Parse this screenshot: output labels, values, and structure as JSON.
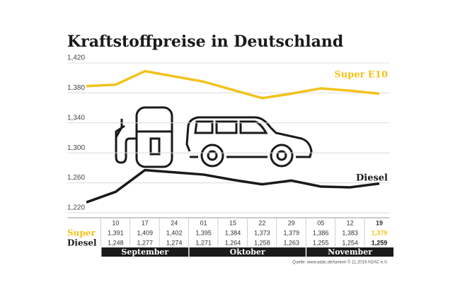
{
  "chart_data": {
    "type": "line",
    "title": "Kraftstoffpreise in Deutschland",
    "categories": [
      null,
      "10",
      "17",
      "24",
      "01",
      "15",
      "22",
      "29",
      "05",
      "12",
      "19"
    ],
    "series": [
      {
        "name": "Super E10",
        "color": "#f2c21b",
        "values": [
          1.389,
          1.391,
          1.409,
          1.402,
          1.395,
          1.384,
          1.373,
          1.379,
          1.386,
          1.383,
          1.379
        ],
        "value_labels": [
          null,
          "1,391",
          "1,409",
          "1,402",
          "1,395",
          "1,384",
          "1,373",
          "1,379",
          "1,386",
          "1,383",
          "1,379"
        ]
      },
      {
        "name": "Diesel",
        "color": "#1a1a1a",
        "values": [
          1.234,
          1.248,
          1.277,
          1.274,
          1.271,
          1.264,
          1.258,
          1.263,
          1.255,
          1.254,
          1.259
        ],
        "value_labels": [
          null,
          "1,248",
          "1,277",
          "1,274",
          "1,271",
          "1,264",
          "1,258",
          "1,263",
          "1,255",
          "1,254",
          "1,259"
        ]
      }
    ],
    "table_row_labels": [
      "Super",
      "Diesel"
    ],
    "months": [
      {
        "label": "September",
        "start": 1,
        "end": 3
      },
      {
        "label": "Oktober",
        "start": 4,
        "end": 7
      },
      {
        "label": "November",
        "start": 8,
        "end": 10
      }
    ],
    "ylim": [
      1.22,
      1.42
    ],
    "yticks": [
      {
        "value": 1.22,
        "label": "1,220"
      },
      {
        "value": 1.26,
        "label": "1,260"
      },
      {
        "value": 1.3,
        "label": "1,300"
      },
      {
        "value": 1.34,
        "label": "1,340"
      },
      {
        "value": 1.38,
        "label": "1,380"
      },
      {
        "value": 1.42,
        "label": "1,420"
      }
    ],
    "grid": true,
    "source": "Quelle: www.adac.de/tanken  © 11.2019  ADAC e.V."
  }
}
